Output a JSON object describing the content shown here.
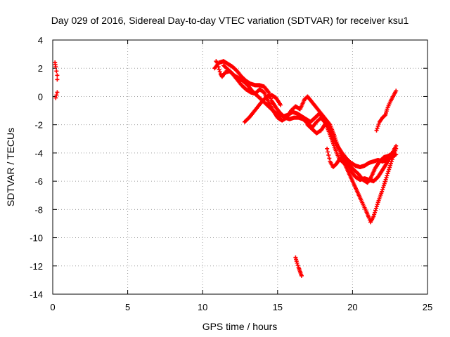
{
  "chart_data": {
    "type": "scatter",
    "title": "Day 029 of 2016, Sidereal Day-to-day VTEC variation (SDTVAR) for receiver ksu1",
    "xlabel": "GPS time / hours",
    "ylabel": "SDTVAR / TECUs",
    "xlim": [
      0,
      25
    ],
    "ylim": [
      -14,
      4
    ],
    "xticks": [
      "0",
      "5",
      "10",
      "15",
      "20",
      "25"
    ],
    "yticks": [
      "4",
      "2",
      "0",
      "-2",
      "-4",
      "-6",
      "-8",
      "-10",
      "-12",
      "-14"
    ],
    "grid": true,
    "marker": "plus",
    "color": "#ff0000",
    "series": [
      {
        "tracks": [
          [
            [
              0.15,
              2.4
            ],
            [
              0.2,
              2.1
            ],
            [
              0.25,
              1.8
            ],
            [
              0.3,
              1.5
            ],
            [
              0.3,
              1.2
            ]
          ],
          [
            [
              0.2,
              -0.1
            ],
            [
              0.25,
              0.1
            ],
            [
              0.3,
              0.3
            ]
          ],
          [
            [
              10.9,
              2.5
            ],
            [
              11.0,
              2.3
            ],
            [
              11.1,
              1.9
            ],
            [
              11.2,
              1.6
            ],
            [
              11.3,
              1.4
            ],
            [
              11.5,
              1.7
            ],
            [
              11.8,
              1.8
            ],
            [
              12.1,
              1.5
            ],
            [
              12.4,
              1.3
            ],
            [
              12.7,
              1.1
            ],
            [
              13.0,
              0.8
            ],
            [
              13.3,
              0.4
            ],
            [
              13.6,
              0.1
            ],
            [
              13.9,
              -0.2
            ],
            [
              14.2,
              -0.5
            ],
            [
              14.5,
              -0.8
            ],
            [
              14.8,
              -1.1
            ],
            [
              15.1,
              -1.3
            ],
            [
              15.4,
              -1.4
            ],
            [
              15.7,
              -1.3
            ],
            [
              16.0,
              -1.1
            ],
            [
              16.3,
              -1.2
            ],
            [
              16.6,
              -1.4
            ],
            [
              16.9,
              -1.6
            ],
            [
              17.2,
              -1.8
            ],
            [
              17.5,
              -1.5
            ],
            [
              17.8,
              -1.2
            ],
            [
              18.1,
              -1.6
            ],
            [
              18.4,
              -2.2
            ],
            [
              18.7,
              -2.9
            ],
            [
              19.0,
              -3.5
            ],
            [
              19.3,
              -4.0
            ],
            [
              19.6,
              -4.4
            ],
            [
              19.9,
              -4.7
            ],
            [
              20.2,
              -4.9
            ],
            [
              20.5,
              -5.0
            ],
            [
              20.8,
              -4.9
            ],
            [
              21.1,
              -4.7
            ],
            [
              21.4,
              -4.6
            ],
            [
              21.7,
              -4.5
            ],
            [
              22.0,
              -4.6
            ],
            [
              22.3,
              -4.5
            ],
            [
              22.6,
              -4.3
            ],
            [
              22.9,
              -4.1
            ]
          ],
          [
            [
              10.8,
              2.0
            ],
            [
              11.1,
              2.4
            ],
            [
              11.4,
              2.5
            ],
            [
              11.7,
              2.3
            ],
            [
              12.0,
              2.1
            ],
            [
              12.3,
              1.8
            ],
            [
              12.6,
              1.4
            ],
            [
              12.9,
              1.1
            ],
            [
              13.2,
              0.9
            ],
            [
              13.5,
              0.8
            ],
            [
              13.8,
              0.8
            ],
            [
              14.1,
              0.7
            ],
            [
              14.4,
              0.3
            ],
            [
              14.6,
              -0.3
            ],
            [
              14.9,
              -0.8
            ],
            [
              15.2,
              -1.2
            ],
            [
              15.5,
              -1.5
            ],
            [
              15.8,
              -1.6
            ],
            [
              16.1,
              -1.5
            ],
            [
              16.4,
              -1.5
            ],
            [
              16.7,
              -1.6
            ],
            [
              17.0,
              -1.9
            ],
            [
              17.3,
              -2.2
            ],
            [
              17.6,
              -1.8
            ],
            [
              17.9,
              -1.5
            ],
            [
              18.2,
              -1.9
            ],
            [
              18.5,
              -2.7
            ],
            [
              18.8,
              -3.6
            ],
            [
              19.1,
              -4.4
            ],
            [
              19.4,
              -4.7
            ],
            [
              19.7,
              -4.9
            ],
            [
              19.9,
              -5.3
            ],
            [
              20.2,
              -5.7
            ],
            [
              20.5,
              -5.9
            ],
            [
              20.8,
              -5.8
            ],
            [
              21.1,
              -5.9
            ],
            [
              21.4,
              -6.0
            ],
            [
              21.7,
              -5.7
            ],
            [
              22.0,
              -5.2
            ],
            [
              22.3,
              -4.7
            ],
            [
              22.6,
              -4.1
            ],
            [
              22.9,
              -3.5
            ]
          ],
          [
            [
              11.4,
              2.2
            ],
            [
              11.7,
              1.9
            ],
            [
              12.0,
              1.6
            ],
            [
              12.3,
              1.2
            ],
            [
              12.6,
              0.8
            ],
            [
              12.9,
              0.5
            ],
            [
              13.2,
              0.3
            ],
            [
              13.5,
              0.2
            ],
            [
              13.8,
              0.5
            ],
            [
              14.1,
              0.3
            ],
            [
              14.4,
              -0.4
            ],
            [
              14.7,
              -1.0
            ],
            [
              15.0,
              -1.5
            ],
            [
              15.3,
              -1.7
            ],
            [
              15.6,
              -1.5
            ],
            [
              15.9,
              -1.0
            ],
            [
              16.2,
              -0.7
            ],
            [
              16.5,
              -0.9
            ],
            [
              16.8,
              -0.2
            ],
            [
              17.0,
              0.0
            ],
            [
              17.3,
              -0.4
            ],
            [
              17.6,
              -0.8
            ],
            [
              17.9,
              -1.2
            ],
            [
              18.2,
              -1.6
            ],
            [
              18.5,
              -2.0
            ],
            [
              18.8,
              -2.8
            ],
            [
              19.1,
              -3.8
            ],
            [
              19.4,
              -4.6
            ],
            [
              19.7,
              -5.3
            ],
            [
              20.0,
              -6.0
            ],
            [
              20.3,
              -6.7
            ],
            [
              20.6,
              -7.4
            ],
            [
              20.9,
              -8.1
            ],
            [
              21.1,
              -8.6
            ],
            [
              21.2,
              -8.9
            ],
            [
              21.4,
              -8.5
            ],
            [
              21.7,
              -7.5
            ],
            [
              22.0,
              -6.6
            ],
            [
              22.3,
              -5.6
            ],
            [
              22.6,
              -4.6
            ],
            [
              22.9,
              -3.7
            ]
          ],
          [
            [
              12.8,
              -1.8
            ],
            [
              13.1,
              -1.5
            ],
            [
              13.4,
              -1.1
            ],
            [
              13.7,
              -0.7
            ],
            [
              14.0,
              -0.3
            ],
            [
              14.3,
              0.0
            ],
            [
              14.6,
              0.1
            ],
            [
              14.9,
              -0.1
            ],
            [
              15.2,
              -0.6
            ]
          ],
          [
            [
              17.0,
              -2.0
            ],
            [
              17.3,
              -2.3
            ],
            [
              17.6,
              -2.6
            ],
            [
              17.9,
              -2.4
            ],
            [
              18.2,
              -1.9
            ],
            [
              18.5,
              -2.4
            ],
            [
              18.7,
              -3.2
            ]
          ],
          [
            [
              18.3,
              -3.7
            ],
            [
              18.5,
              -4.6
            ],
            [
              18.7,
              -5.0
            ],
            [
              18.9,
              -4.8
            ],
            [
              19.1,
              -4.5
            ],
            [
              19.3,
              -4.3
            ],
            [
              19.5,
              -4.6
            ],
            [
              19.8,
              -4.9
            ],
            [
              20.1,
              -5.2
            ],
            [
              20.4,
              -5.5
            ],
            [
              20.7,
              -5.9
            ],
            [
              21.0,
              -6.1
            ],
            [
              21.2,
              -5.8
            ],
            [
              21.5,
              -5.1
            ],
            [
              21.8,
              -4.6
            ],
            [
              22.1,
              -4.3
            ],
            [
              22.4,
              -4.2
            ],
            [
              22.7,
              -4.0
            ]
          ],
          [
            [
              21.6,
              -2.4
            ],
            [
              21.8,
              -1.8
            ],
            [
              22.0,
              -1.5
            ],
            [
              22.2,
              -1.3
            ],
            [
              22.3,
              -0.9
            ],
            [
              22.5,
              -0.4
            ],
            [
              22.7,
              0.0
            ],
            [
              22.9,
              0.4
            ]
          ],
          [
            [
              16.2,
              -11.4
            ],
            [
              16.3,
              -11.8
            ],
            [
              16.4,
              -12.1
            ],
            [
              16.5,
              -12.4
            ],
            [
              16.6,
              -12.7
            ]
          ]
        ]
      }
    ]
  }
}
